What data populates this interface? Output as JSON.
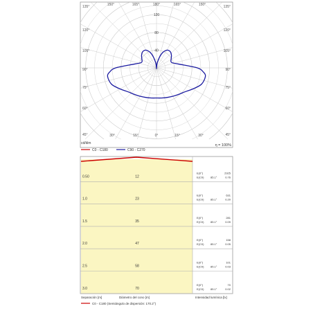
{
  "chart_data": [
    {
      "type": "polar",
      "unit_label": "cd/klm",
      "efficiency_label": "η = 100%",
      "radial_ticks": [
        40,
        80,
        120,
        160
      ],
      "rmax": 175,
      "angle_labels_left": [
        "135°",
        "120°",
        "105°",
        "90°",
        "75°",
        "60°",
        "45°"
      ],
      "angle_labels_right": [
        "135°",
        "120°",
        "105°",
        "90°",
        "75°",
        "60°",
        "45°"
      ],
      "angle_labels_top": [
        "165°",
        "180°",
        "165°",
        "150°"
      ],
      "angle_labels_top_left": "150°",
      "angle_labels_bottom": [
        "30°",
        "15°",
        "0°",
        "15°",
        "30°"
      ],
      "legend": [
        {
          "name": "C0 - C180",
          "color": "#cc0000"
        },
        {
          "name": "C90 - C270",
          "color": "#1a1aa0"
        }
      ],
      "series": [
        {
          "name": "C90 - C270",
          "color": "#1a1aa0",
          "angles": [
            0,
            10,
            20,
            30,
            40,
            50,
            60,
            70,
            80,
            85,
            90,
            100,
            110,
            120,
            130,
            140,
            150,
            160,
            170,
            180
          ],
          "values": [
            68,
            69,
            71,
            74,
            78,
            84,
            95,
            108,
            112,
            106,
            92,
            50,
            36,
            38,
            44,
            48,
            46,
            34,
            14,
            0
          ]
        }
      ]
    },
    {
      "type": "table",
      "footer_left": "Separación [m]",
      "footer_mid": "Diámetro del cono [m]",
      "footer_right": "Intensidad lumínica [lx]",
      "legend": {
        "name": "C0 - C180 (Semiángulo de dispersión: 170.2°)",
        "color": "#cc0000"
      },
      "rows": [
        {
          "sep": "0.50",
          "diam": "12",
          "e0_label": "E(0°)",
          "e0": "2925",
          "ec_label": "E(C0)",
          "ang": "85.1°",
          "ec": "0.76"
        },
        {
          "sep": "1.0",
          "diam": "23",
          "e0_label": "E(0°)",
          "e0": "631",
          "ec_label": "E(C0)",
          "ang": "85.1°",
          "ec": "0.20"
        },
        {
          "sep": "1.5",
          "diam": "35",
          "e0_label": "E(0°)",
          "e0": "281",
          "ec_label": "E(C0)",
          "ang": "85.1°",
          "ec": "0.09"
        },
        {
          "sep": "2.0",
          "diam": "47",
          "e0_label": "E(0°)",
          "e0": "158",
          "ec_label": "E(C0)",
          "ang": "85.1°",
          "ec": "0.05"
        },
        {
          "sep": "2.5",
          "diam": "58",
          "e0_label": "E(0°)",
          "e0": "101",
          "ec_label": "E(C0)",
          "ang": "85.1°",
          "ec": "0.03"
        },
        {
          "sep": "3.0",
          "diam": "70",
          "e0_label": "E(0°)",
          "e0": "70",
          "ec_label": "E(C0)",
          "ang": "85.1°",
          "ec": "0.02"
        }
      ]
    }
  ]
}
